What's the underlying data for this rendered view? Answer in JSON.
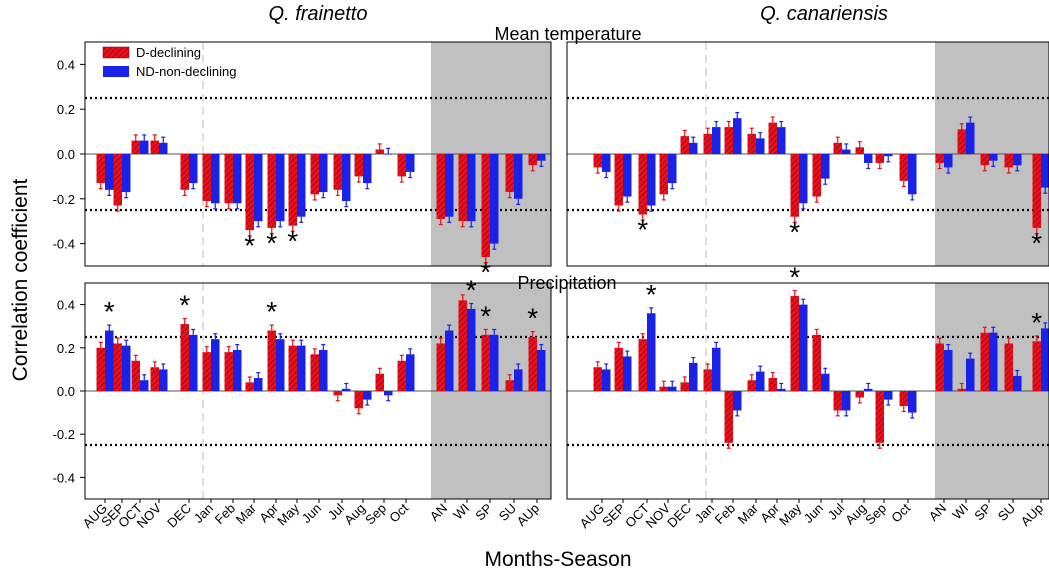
{
  "chart_data": {
    "type": "bar",
    "xlabel": "Months-Season",
    "ylabel": "Correlation coefficient",
    "ylim": [
      -0.5,
      0.5
    ],
    "yticks": [
      "0.4",
      "0.2",
      "0.0",
      "-0.2",
      "-0.4"
    ],
    "threshold_lines": [
      0.25,
      -0.25
    ],
    "categories": [
      "AUG",
      "SEP",
      "OCT",
      "NOV",
      "DEC",
      "Jan",
      "Feb",
      "Mar",
      "Apr",
      "May",
      "Jun",
      "Jul",
      "Aug",
      "Sep",
      "Oct",
      "AN",
      "WI",
      "SP",
      "SU",
      "AUp"
    ],
    "shaded_categories_from": "AN",
    "legend": [
      "D-declining",
      "ND-non-declining"
    ],
    "colors": {
      "declining": "#e8101c",
      "non_declining": "#1a22e8",
      "shade": "#c0c0c0"
    },
    "panels": [
      {
        "species": "Q. frainetto",
        "variable": "Mean temperature",
        "declining": [
          -0.13,
          -0.23,
          0.06,
          0.06,
          -0.16,
          -0.21,
          -0.22,
          -0.34,
          -0.33,
          -0.32,
          -0.18,
          -0.16,
          -0.1,
          0.02,
          -0.1,
          -0.29,
          -0.3,
          -0.46,
          -0.17,
          -0.05
        ],
        "non_declining": [
          -0.16,
          -0.17,
          0.06,
          0.05,
          -0.13,
          -0.22,
          -0.22,
          -0.3,
          -0.3,
          -0.28,
          -0.17,
          -0.21,
          -0.13,
          0.0,
          -0.08,
          -0.28,
          -0.3,
          -0.4,
          -0.2,
          -0.03
        ],
        "sig_declining": [
          "Mar",
          "Apr",
          "May",
          "SP"
        ],
        "sig_non_declining": []
      },
      {
        "species": "Q. frainetto",
        "variable": "Precipitation",
        "declining": [
          0.2,
          0.22,
          0.14,
          0.11,
          0.31,
          0.18,
          0.18,
          0.04,
          0.28,
          0.21,
          0.17,
          -0.02,
          -0.08,
          0.08,
          0.14,
          0.22,
          0.42,
          0.26,
          0.05,
          0.25
        ],
        "non_declining": [
          0.28,
          0.21,
          0.05,
          0.1,
          0.26,
          0.24,
          0.19,
          0.06,
          0.24,
          0.21,
          0.19,
          0.01,
          -0.04,
          -0.02,
          0.17,
          0.28,
          0.38,
          0.26,
          0.1,
          0.19
        ],
        "sig_declining": [
          "DEC",
          "Apr",
          "SP",
          "AUp"
        ],
        "sig_non_declining": [
          "AUG",
          "WI"
        ]
      },
      {
        "species": "Q. canariensis",
        "variable": "Mean temperature",
        "declining": [
          -0.06,
          -0.23,
          -0.27,
          -0.18,
          0.08,
          0.09,
          0.12,
          0.09,
          0.14,
          -0.28,
          -0.19,
          0.05,
          0.03,
          -0.04,
          -0.12,
          -0.04,
          0.11,
          -0.05,
          -0.06,
          -0.33
        ],
        "non_declining": [
          -0.08,
          -0.19,
          -0.23,
          -0.13,
          0.05,
          0.12,
          0.16,
          0.07,
          0.12,
          -0.22,
          -0.11,
          0.02,
          -0.04,
          -0.01,
          -0.18,
          -0.06,
          0.14,
          -0.03,
          -0.05,
          -0.15
        ],
        "sig_declining": [
          "OCT",
          "May",
          "AUp"
        ],
        "sig_non_declining": []
      },
      {
        "species": "Q. canariensis",
        "variable": "Precipitation",
        "declining": [
          0.11,
          0.2,
          0.24,
          0.02,
          0.04,
          0.1,
          -0.24,
          0.05,
          0.06,
          0.44,
          0.26,
          -0.09,
          -0.03,
          -0.24,
          -0.07,
          0.22,
          0.01,
          0.27,
          0.22,
          0.23
        ],
        "non_declining": [
          0.1,
          0.16,
          0.36,
          0.02,
          0.13,
          0.2,
          -0.09,
          0.09,
          0.01,
          0.4,
          0.08,
          -0.09,
          0.01,
          -0.04,
          -0.1,
          0.19,
          0.15,
          0.27,
          0.07,
          0.29
        ],
        "sig_declining": [
          "May",
          "AUp"
        ],
        "sig_non_declining": [
          "OCT"
        ]
      }
    ]
  }
}
